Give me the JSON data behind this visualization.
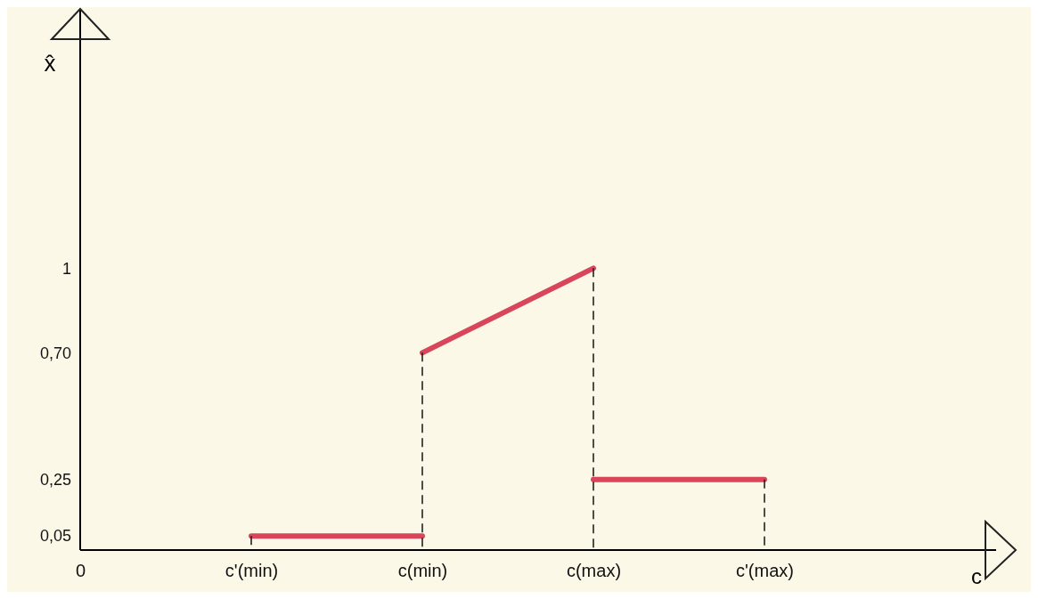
{
  "chart_data": {
    "type": "line",
    "ylabel": "x̂",
    "annotations": [
      "c"
    ],
    "categories": [
      "0",
      "c'(min)",
      "c(min)",
      "c(max)",
      "c'(max)"
    ],
    "ylim": [
      0,
      1.92
    ],
    "yticks": [
      {
        "value": 0.05,
        "label": "0,05"
      },
      {
        "value": 0.25,
        "label": "0,25"
      },
      {
        "value": 0.7,
        "label": "0,70"
      },
      {
        "value": 1,
        "label": "1"
      }
    ],
    "marker": "none",
    "series": [
      {
        "color": "#d9455a",
        "values": [
          null,
          0.05,
          0.05,
          null,
          null
        ],
        "line_style": "solid"
      },
      {
        "color": "#d9455a",
        "values": [
          null,
          null,
          0.7,
          1,
          null
        ],
        "line_style": "solid"
      },
      {
        "color": "#d9455a",
        "values": [
          null,
          null,
          null,
          0.25,
          0.25
        ],
        "line_style": "solid"
      },
      {
        "color": "#222222",
        "x": [
          "c'(min)",
          "c'(min)"
        ],
        "values": [
          0,
          0.05
        ],
        "line_style": "dashed"
      },
      {
        "color": "#222222",
        "x": [
          "c(min)",
          "c(min)"
        ],
        "values": [
          0,
          0.7
        ],
        "line_style": "dashed"
      },
      {
        "color": "#222222",
        "x": [
          "c(max)",
          "c(max)"
        ],
        "values": [
          0,
          1
        ],
        "line_style": "dashed"
      },
      {
        "color": "#222222",
        "x": [
          "c'(max)",
          "c'(max)"
        ],
        "values": [
          0,
          0.25
        ],
        "line_style": "dashed"
      }
    ]
  }
}
